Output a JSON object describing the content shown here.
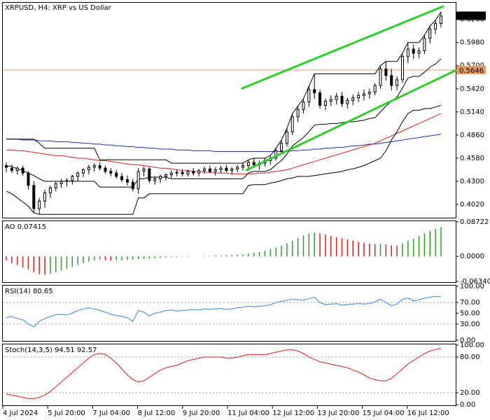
{
  "header": {
    "main_title": "XRPUSD, H4:  XRP vs US Dollar",
    "ao_title": "AO 0.07415",
    "rsi_title": "RSI(14) 80.65",
    "stoch_title": "Stoch(14,3,5) 94.51 92.57"
  },
  "price_labels": {
    "current": "0.6303",
    "horizontal_line": "0.5646"
  },
  "colors": {
    "channel": "#2ecc2e",
    "bull_candle": "#000000",
    "bear_candle": "#000000",
    "donchian": "#000000",
    "ma_fast": "#d62020",
    "ma_slow": "#1f2fb0",
    "hline": "#e89a66",
    "ao_up": "#2a9d2a",
    "ao_down": "#d42020",
    "rsi": "#3b86d6",
    "stoch": "#d42020",
    "bg": "#ffffff",
    "grid": "#000000"
  },
  "chart_data": [
    {
      "type": "candlestick",
      "title": "XRPUSD, H4:  XRP vs US Dollar",
      "y_ticks": [
        "0.6260",
        "0.5980",
        "0.5700",
        "0.5420",
        "0.5140",
        "0.4860",
        "0.4580",
        "0.4300",
        "0.4020"
      ],
      "ylim": [
        0.386,
        0.646
      ],
      "x_ticks": [
        "4 Jul 2024",
        "5 Jul 20:00",
        "7 Jul 04:00",
        "8 Jul 12:00",
        "9 Jul 20:00",
        "11 Jul 04:00",
        "12 Jul 12:00",
        "13 Jul 20:00",
        "15 Jul 04:00",
        "16 Jul 12:00"
      ],
      "candles": [
        [
          0.449,
          0.453,
          0.441,
          0.447
        ],
        [
          0.446,
          0.45,
          0.44,
          0.443
        ],
        [
          0.443,
          0.448,
          0.438,
          0.446
        ],
        [
          0.446,
          0.449,
          0.437,
          0.44
        ],
        [
          0.44,
          0.442,
          0.42,
          0.425
        ],
        [
          0.425,
          0.43,
          0.392,
          0.397
        ],
        [
          0.397,
          0.41,
          0.39,
          0.406
        ],
        [
          0.406,
          0.42,
          0.398,
          0.416
        ],
        [
          0.416,
          0.425,
          0.41,
          0.422
        ],
        [
          0.422,
          0.43,
          0.418,
          0.427
        ],
        [
          0.427,
          0.433,
          0.422,
          0.43
        ],
        [
          0.43,
          0.434,
          0.424,
          0.431
        ],
        [
          0.431,
          0.438,
          0.426,
          0.436
        ],
        [
          0.436,
          0.442,
          0.43,
          0.44
        ],
        [
          0.44,
          0.446,
          0.435,
          0.444
        ],
        [
          0.444,
          0.45,
          0.438,
          0.447
        ],
        [
          0.447,
          0.452,
          0.442,
          0.449
        ],
        [
          0.449,
          0.453,
          0.443,
          0.446
        ],
        [
          0.446,
          0.449,
          0.439,
          0.442
        ],
        [
          0.442,
          0.446,
          0.436,
          0.44
        ],
        [
          0.44,
          0.444,
          0.433,
          0.436
        ],
        [
          0.436,
          0.44,
          0.429,
          0.432
        ],
        [
          0.432,
          0.437,
          0.425,
          0.429
        ],
        [
          0.429,
          0.433,
          0.418,
          0.421
        ],
        [
          0.421,
          0.446,
          0.415,
          0.442
        ],
        [
          0.442,
          0.448,
          0.436,
          0.445
        ],
        [
          0.445,
          0.447,
          0.428,
          0.431
        ],
        [
          0.431,
          0.436,
          0.426,
          0.433
        ],
        [
          0.433,
          0.438,
          0.428,
          0.436
        ],
        [
          0.436,
          0.44,
          0.431,
          0.438
        ],
        [
          0.438,
          0.443,
          0.434,
          0.44
        ],
        [
          0.44,
          0.444,
          0.436,
          0.441
        ],
        [
          0.441,
          0.445,
          0.436,
          0.439
        ],
        [
          0.439,
          0.444,
          0.436,
          0.442
        ],
        [
          0.442,
          0.446,
          0.437,
          0.44
        ],
        [
          0.44,
          0.445,
          0.436,
          0.443
        ],
        [
          0.443,
          0.448,
          0.439,
          0.445
        ],
        [
          0.445,
          0.449,
          0.44,
          0.442
        ],
        [
          0.442,
          0.447,
          0.437,
          0.444
        ],
        [
          0.444,
          0.449,
          0.44,
          0.446
        ],
        [
          0.446,
          0.45,
          0.441,
          0.443
        ],
        [
          0.443,
          0.447,
          0.438,
          0.445
        ],
        [
          0.445,
          0.45,
          0.441,
          0.447
        ],
        [
          0.447,
          0.452,
          0.443,
          0.449
        ],
        [
          0.449,
          0.456,
          0.445,
          0.453
        ],
        [
          0.453,
          0.458,
          0.447,
          0.45
        ],
        [
          0.45,
          0.455,
          0.444,
          0.452
        ],
        [
          0.452,
          0.458,
          0.448,
          0.455
        ],
        [
          0.455,
          0.461,
          0.45,
          0.458
        ],
        [
          0.458,
          0.47,
          0.455,
          0.467
        ],
        [
          0.467,
          0.48,
          0.463,
          0.476
        ],
        [
          0.476,
          0.494,
          0.472,
          0.49
        ],
        [
          0.49,
          0.512,
          0.486,
          0.508
        ],
        [
          0.508,
          0.521,
          0.502,
          0.517
        ],
        [
          0.517,
          0.53,
          0.512,
          0.526
        ],
        [
          0.526,
          0.545,
          0.52,
          0.541
        ],
        [
          0.541,
          0.56,
          0.53,
          0.537
        ],
        [
          0.537,
          0.541,
          0.518,
          0.522
        ],
        [
          0.522,
          0.53,
          0.516,
          0.527
        ],
        [
          0.527,
          0.534,
          0.521,
          0.529
        ],
        [
          0.529,
          0.537,
          0.523,
          0.533
        ],
        [
          0.533,
          0.538,
          0.52,
          0.524
        ],
        [
          0.524,
          0.531,
          0.518,
          0.528
        ],
        [
          0.528,
          0.535,
          0.522,
          0.531
        ],
        [
          0.531,
          0.538,
          0.526,
          0.534
        ],
        [
          0.534,
          0.541,
          0.528,
          0.536
        ],
        [
          0.536,
          0.542,
          0.53,
          0.538
        ],
        [
          0.538,
          0.549,
          0.534,
          0.546
        ],
        [
          0.546,
          0.57,
          0.542,
          0.566
        ],
        [
          0.566,
          0.575,
          0.552,
          0.558
        ],
        [
          0.558,
          0.566,
          0.54,
          0.546
        ],
        [
          0.546,
          0.557,
          0.54,
          0.553
        ],
        [
          0.553,
          0.585,
          0.549,
          0.581
        ],
        [
          0.581,
          0.598,
          0.573,
          0.59
        ],
        [
          0.59,
          0.596,
          0.578,
          0.585
        ],
        [
          0.585,
          0.592,
          0.579,
          0.588
        ],
        [
          0.588,
          0.607,
          0.584,
          0.603
        ],
        [
          0.603,
          0.618,
          0.597,
          0.614
        ],
        [
          0.614,
          0.625,
          0.608,
          0.621
        ],
        [
          0.621,
          0.635,
          0.616,
          0.63
        ]
      ],
      "hline": 0.5646,
      "channel_upper": [
        [
          0.542,
          0.535
        ],
        [
          0.63,
          0.642
        ]
      ],
      "channel_lower": [
        [
          0.443,
          0.439
        ],
        [
          0.56,
          0.565
        ]
      ],
      "donchian_upper": [
        0.481,
        0.481,
        0.481,
        0.481,
        0.481,
        0.481,
        0.476,
        0.47,
        0.47,
        0.47,
        0.47,
        0.47,
        0.47,
        0.47,
        0.47,
        0.47,
        0.47,
        0.456,
        0.456,
        0.456,
        0.456,
        0.456,
        0.456,
        0.456,
        0.456,
        0.456,
        0.456,
        0.456,
        0.456,
        0.456,
        0.452,
        0.452,
        0.452,
        0.452,
        0.452,
        0.452,
        0.452,
        0.452,
        0.452,
        0.452,
        0.452,
        0.452,
        0.452,
        0.452,
        0.456,
        0.458,
        0.458,
        0.458,
        0.461,
        0.47,
        0.48,
        0.494,
        0.512,
        0.521,
        0.53,
        0.545,
        0.56,
        0.56,
        0.56,
        0.56,
        0.56,
        0.56,
        0.56,
        0.56,
        0.56,
        0.56,
        0.56,
        0.56,
        0.57,
        0.575,
        0.575,
        0.575,
        0.585,
        0.598,
        0.598,
        0.598,
        0.607,
        0.618,
        0.625,
        0.635
      ],
      "donchian_lower": [
        0.418,
        0.415,
        0.41,
        0.405,
        0.4,
        0.392,
        0.39,
        0.39,
        0.39,
        0.39,
        0.39,
        0.39,
        0.39,
        0.39,
        0.39,
        0.39,
        0.39,
        0.39,
        0.39,
        0.39,
        0.39,
        0.39,
        0.39,
        0.39,
        0.41,
        0.41,
        0.415,
        0.415,
        0.415,
        0.415,
        0.415,
        0.415,
        0.415,
        0.415,
        0.415,
        0.415,
        0.415,
        0.415,
        0.415,
        0.415,
        0.415,
        0.415,
        0.415,
        0.415,
        0.425,
        0.426,
        0.426,
        0.426,
        0.428,
        0.429,
        0.431,
        0.433,
        0.434,
        0.436,
        0.436,
        0.436,
        0.437,
        0.438,
        0.439,
        0.44,
        0.441,
        0.442,
        0.444,
        0.445,
        0.447,
        0.449,
        0.452,
        0.455,
        0.458,
        0.467,
        0.48,
        0.49,
        0.502,
        0.512,
        0.516,
        0.516,
        0.518,
        0.518,
        0.52,
        0.522
      ],
      "donchian_mid": [
        0.449,
        0.448,
        0.445,
        0.443,
        0.44,
        0.437,
        0.433,
        0.43,
        0.43,
        0.43,
        0.43,
        0.43,
        0.43,
        0.43,
        0.43,
        0.43,
        0.43,
        0.423,
        0.423,
        0.423,
        0.423,
        0.423,
        0.423,
        0.423,
        0.433,
        0.433,
        0.435,
        0.435,
        0.435,
        0.435,
        0.433,
        0.433,
        0.433,
        0.433,
        0.433,
        0.433,
        0.433,
        0.433,
        0.433,
        0.433,
        0.433,
        0.433,
        0.433,
        0.433,
        0.44,
        0.442,
        0.442,
        0.442,
        0.444,
        0.45,
        0.455,
        0.463,
        0.473,
        0.478,
        0.483,
        0.49,
        0.498,
        0.499,
        0.499,
        0.5,
        0.5,
        0.501,
        0.502,
        0.502,
        0.503,
        0.504,
        0.506,
        0.507,
        0.514,
        0.521,
        0.527,
        0.532,
        0.543,
        0.555,
        0.557,
        0.557,
        0.562,
        0.568,
        0.572,
        0.578
      ],
      "ma_fast": [
        0.468,
        0.468,
        0.467,
        0.467,
        0.466,
        0.465,
        0.464,
        0.463,
        0.462,
        0.461,
        0.461,
        0.46,
        0.459,
        0.458,
        0.458,
        0.457,
        0.456,
        0.455,
        0.455,
        0.454,
        0.453,
        0.452,
        0.451,
        0.45,
        0.45,
        0.449,
        0.448,
        0.447,
        0.446,
        0.446,
        0.445,
        0.444,
        0.443,
        0.443,
        0.442,
        0.442,
        0.441,
        0.441,
        0.44,
        0.44,
        0.44,
        0.439,
        0.439,
        0.439,
        0.439,
        0.439,
        0.44,
        0.44,
        0.441,
        0.442,
        0.443,
        0.444,
        0.446,
        0.448,
        0.45,
        0.452,
        0.454,
        0.456,
        0.458,
        0.46,
        0.462,
        0.464,
        0.466,
        0.468,
        0.47,
        0.472,
        0.474,
        0.476,
        0.479,
        0.482,
        0.485,
        0.488,
        0.491,
        0.494,
        0.497,
        0.5,
        0.503,
        0.506,
        0.509,
        0.512
      ],
      "ma_slow": [
        0.481,
        0.481,
        0.481,
        0.48,
        0.48,
        0.48,
        0.479,
        0.479,
        0.479,
        0.478,
        0.478,
        0.478,
        0.477,
        0.477,
        0.476,
        0.476,
        0.475,
        0.475,
        0.474,
        0.474,
        0.473,
        0.473,
        0.472,
        0.472,
        0.471,
        0.471,
        0.47,
        0.47,
        0.469,
        0.469,
        0.469,
        0.468,
        0.468,
        0.468,
        0.467,
        0.467,
        0.467,
        0.467,
        0.466,
        0.466,
        0.466,
        0.466,
        0.466,
        0.466,
        0.466,
        0.466,
        0.466,
        0.466,
        0.466,
        0.466,
        0.466,
        0.466,
        0.467,
        0.467,
        0.468,
        0.468,
        0.469,
        0.469,
        0.47,
        0.47,
        0.471,
        0.471,
        0.472,
        0.473,
        0.473,
        0.474,
        0.475,
        0.475,
        0.476,
        0.477,
        0.478,
        0.479,
        0.48,
        0.481,
        0.482,
        0.483,
        0.484,
        0.485,
        0.486,
        0.487
      ]
    },
    {
      "type": "bar",
      "name": "AO",
      "y_ticks": [
        "0.08722",
        "0.0000",
        "-0.06340"
      ],
      "ylim": [
        -0.0634,
        0.08722
      ],
      "values": [
        -0.01,
        -0.018,
        -0.022,
        -0.028,
        -0.033,
        -0.04,
        -0.045,
        -0.047,
        -0.044,
        -0.04,
        -0.036,
        -0.032,
        -0.027,
        -0.022,
        -0.017,
        -0.013,
        -0.01,
        -0.009,
        -0.01,
        -0.011,
        -0.011,
        -0.01,
        -0.009,
        -0.008,
        -0.007,
        -0.006,
        -0.006,
        -0.005,
        -0.004,
        -0.003,
        -0.002,
        -0.002,
        -0.001,
        -0.001,
        0.0,
        0.0,
        0.001,
        0.001,
        0.002,
        0.002,
        0.003,
        0.003,
        0.004,
        0.005,
        0.007,
        0.009,
        0.011,
        0.014,
        0.018,
        0.022,
        0.027,
        0.033,
        0.04,
        0.047,
        0.053,
        0.057,
        0.06,
        0.058,
        0.055,
        0.052,
        0.049,
        0.046,
        0.043,
        0.04,
        0.037,
        0.034,
        0.032,
        0.031,
        0.032,
        0.03,
        0.028,
        0.027,
        0.032,
        0.04,
        0.045,
        0.051,
        0.058,
        0.064,
        0.07,
        0.0742
      ]
    },
    {
      "type": "line",
      "name": "RSI(14)",
      "y_ticks": [
        "100.00",
        "70.00",
        "50.00",
        "30.00",
        "0.00"
      ],
      "ylim": [
        0,
        100
      ],
      "values": [
        42,
        44,
        40,
        38,
        30,
        25,
        35,
        40,
        44,
        47,
        48,
        47,
        50,
        55,
        58,
        60,
        58,
        55,
        52,
        48,
        46,
        44,
        42,
        35,
        55,
        52,
        45,
        50,
        52,
        55,
        56,
        54,
        55,
        56,
        57,
        56,
        58,
        57,
        58,
        59,
        57,
        58,
        60,
        61,
        63,
        62,
        63,
        64,
        66,
        70,
        72,
        74,
        76,
        75,
        74,
        77,
        80,
        70,
        66,
        67,
        68,
        65,
        66,
        67,
        68,
        67,
        68,
        71,
        76,
        70,
        64,
        67,
        76,
        78,
        73,
        75,
        78,
        80,
        81,
        80.65
      ]
    },
    {
      "type": "line",
      "name": "Stoch(14,3,5)",
      "y_ticks": [
        "100.00",
        "80.00",
        "20.00",
        "0.00"
      ],
      "ylim": [
        0,
        100
      ],
      "values": [
        18,
        16,
        14,
        12,
        10,
        10,
        12,
        16,
        22,
        30,
        38,
        46,
        54,
        62,
        70,
        78,
        84,
        86,
        84,
        78,
        70,
        60,
        50,
        42,
        38,
        40,
        46,
        52,
        58,
        62,
        64,
        66,
        70,
        74,
        76,
        78,
        80,
        80,
        80,
        80,
        78,
        78,
        80,
        82,
        84,
        84,
        84,
        84,
        86,
        88,
        90,
        92,
        92,
        90,
        86,
        80,
        76,
        72,
        70,
        68,
        66,
        64,
        62,
        58,
        55,
        50,
        45,
        42,
        40,
        40,
        44,
        52,
        60,
        68,
        74,
        80,
        86,
        90,
        92.57,
        94.51
      ]
    }
  ]
}
